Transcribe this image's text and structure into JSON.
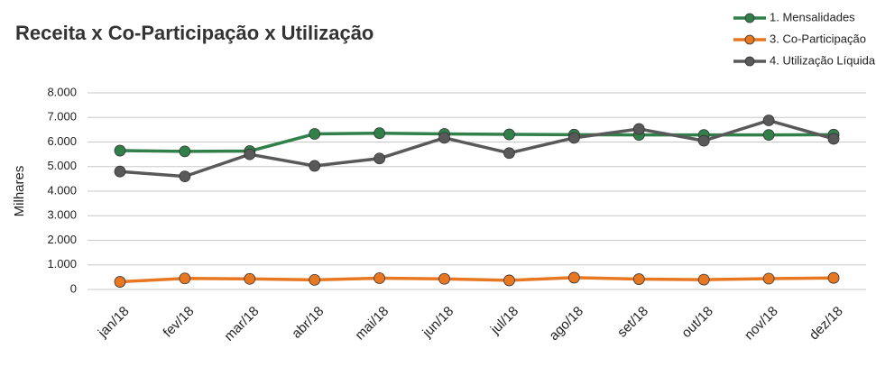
{
  "chart_data": {
    "type": "line",
    "title": "Receita x Co-Participação x Utilização",
    "y_label": "Milhares",
    "categories": [
      "jan/18",
      "fev/18",
      "mar/18",
      "abr/18",
      "mai/18",
      "jun/18",
      "jul/18",
      "ago/18",
      "set/18",
      "out/18",
      "nov/18",
      "dez/18"
    ],
    "series": [
      {
        "name": "1. Mensalidades",
        "color": "#31804a",
        "values": [
          5650,
          5620,
          5630,
          6330,
          6360,
          6330,
          6310,
          6300,
          6290,
          6290,
          6290,
          6300
        ]
      },
      {
        "name": "3. Co-Participação",
        "color": "#e87722",
        "values": [
          310,
          450,
          430,
          390,
          460,
          430,
          370,
          480,
          420,
          400,
          440,
          470
        ]
      },
      {
        "name": "4. Utilização Líquida",
        "color": "#595959",
        "values": [
          4800,
          4600,
          5500,
          5030,
          5330,
          6170,
          5550,
          6170,
          6530,
          6050,
          6880,
          6130
        ]
      }
    ],
    "ylim": [
      0,
      8000
    ],
    "yticks": [
      0,
      {
        "value": 1000,
        "label": "1.000"
      },
      {
        "value": 2000,
        "label": "2.000"
      },
      {
        "value": 3000,
        "label": "3.000"
      },
      {
        "value": 4000,
        "label": "4.000"
      },
      {
        "value": 5000,
        "label": "5.000"
      },
      {
        "value": 6000,
        "label": "6.000"
      },
      {
        "value": 7000,
        "label": "7.000"
      },
      {
        "value": 8000,
        "label": "8.000"
      }
    ],
    "grid": true,
    "legend": "top-right"
  }
}
